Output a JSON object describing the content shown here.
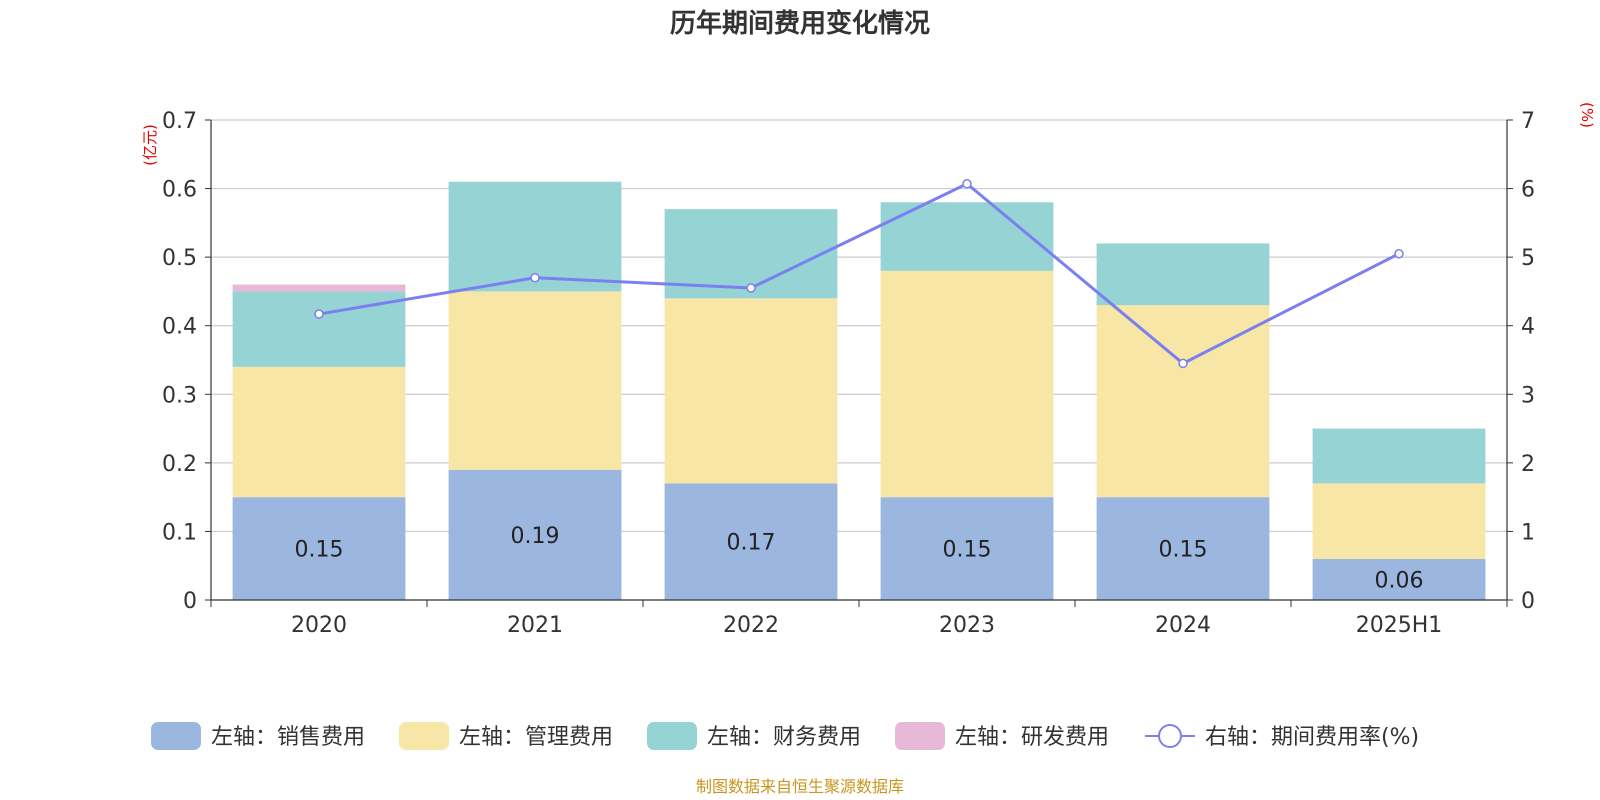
{
  "chart_data": {
    "type": "bar",
    "title": "历年期间费用变化情况",
    "categories": [
      "2020",
      "2021",
      "2022",
      "2023",
      "2024",
      "2025H1"
    ],
    "left_axis": {
      "unit": "(亿元)",
      "ylim": [
        0,
        0.7
      ],
      "ticks": [
        "0",
        "0.1",
        "0.2",
        "0.3",
        "0.4",
        "0.5",
        "0.6",
        "0.7"
      ]
    },
    "right_axis": {
      "unit": "(%)",
      "ylim": [
        0,
        7
      ],
      "ticks": [
        "0",
        "1",
        "2",
        "3",
        "4",
        "5",
        "6",
        "7"
      ]
    },
    "grid": true,
    "legend_position": "bottom",
    "series": [
      {
        "name": "左轴：销售费用",
        "kind": "bar",
        "axis": "left",
        "color": "#9bb7e0",
        "values": [
          0.15,
          0.19,
          0.17,
          0.15,
          0.15,
          0.06
        ],
        "labels": [
          "0.15",
          "0.19",
          "0.17",
          "0.15",
          "0.15",
          "0.06"
        ]
      },
      {
        "name": "左轴：管理费用",
        "kind": "bar",
        "axis": "left",
        "color": "#f7e6a6",
        "values": [
          0.19,
          0.26,
          0.27,
          0.33,
          0.28,
          0.11
        ]
      },
      {
        "name": "左轴：财务费用",
        "kind": "bar",
        "axis": "left",
        "color": "#96d3d4",
        "values": [
          0.11,
          0.16,
          0.13,
          0.1,
          0.09,
          0.08
        ]
      },
      {
        "name": "左轴：研发费用",
        "kind": "bar",
        "axis": "left",
        "color": "#e8b8d8",
        "values": [
          0.01,
          0,
          0,
          0,
          0,
          0
        ]
      },
      {
        "name": "右轴：期间费用率(%)",
        "kind": "line",
        "axis": "right",
        "color": "#7b7ff0",
        "values": [
          4.17,
          4.7,
          4.55,
          6.07,
          3.45,
          5.05
        ]
      }
    ],
    "source_note": "制图数据来自恒生聚源数据库"
  }
}
